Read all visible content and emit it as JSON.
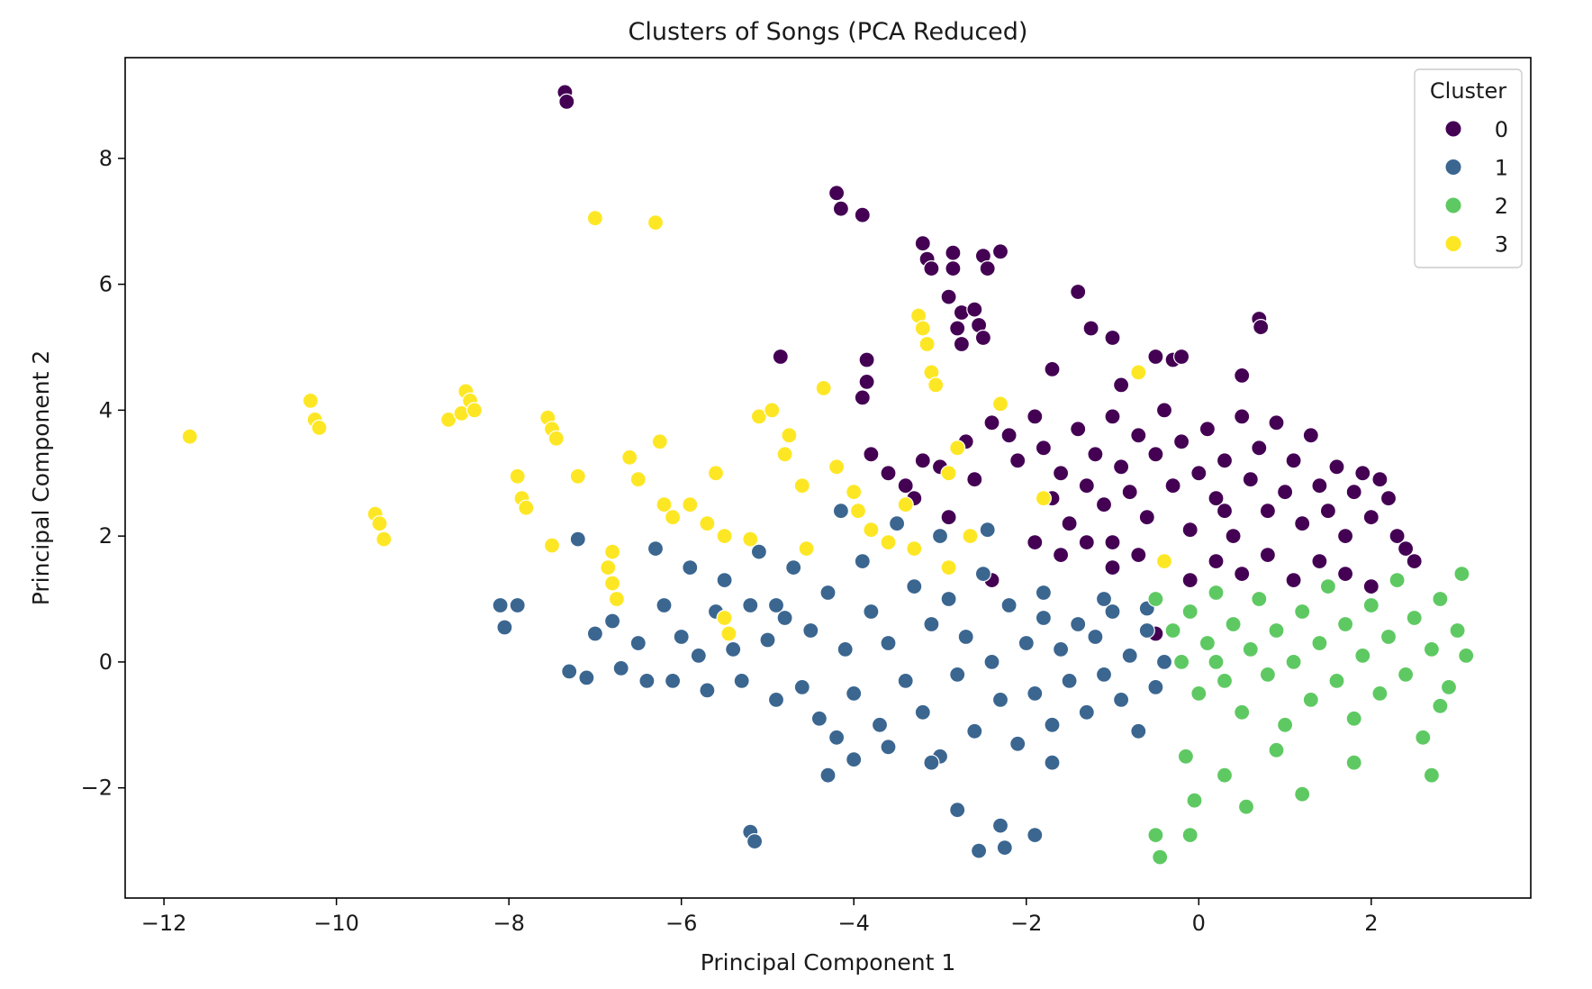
{
  "chart_data": {
    "type": "scatter",
    "title": "Clusters of Songs (PCA Reduced)",
    "xlabel": "Principal Component 1",
    "ylabel": "Principal Component 2",
    "xlim": [
      -12.45,
      3.85
    ],
    "ylim": [
      -3.75,
      9.6
    ],
    "xticks": [
      -12,
      -10,
      -8,
      -6,
      -4,
      -2,
      0,
      2
    ],
    "xtick_labels": [
      "−12",
      "−10",
      "−8",
      "−6",
      "−4",
      "−2",
      "0",
      "2"
    ],
    "yticks": [
      -2,
      0,
      2,
      4,
      6,
      8
    ],
    "ytick_labels": [
      "−2",
      "0",
      "2",
      "4",
      "6",
      "8"
    ],
    "grid": false,
    "legend": {
      "title": "Cluster",
      "placement": "top-right"
    },
    "series": [
      {
        "name": "0",
        "color": "#440154",
        "points": [
          [
            -7.35,
            9.05
          ],
          [
            -7.33,
            8.9
          ],
          [
            -4.2,
            7.45
          ],
          [
            -4.15,
            7.2
          ],
          [
            -3.9,
            7.1
          ],
          [
            -3.2,
            6.65
          ],
          [
            -3.15,
            6.4
          ],
          [
            -3.1,
            6.25
          ],
          [
            -2.85,
            6.5
          ],
          [
            -2.85,
            6.25
          ],
          [
            -2.5,
            6.45
          ],
          [
            -2.45,
            6.25
          ],
          [
            -2.3,
            6.52
          ],
          [
            -2.9,
            5.8
          ],
          [
            -2.75,
            5.55
          ],
          [
            -2.8,
            5.3
          ],
          [
            -2.6,
            5.6
          ],
          [
            -2.55,
            5.35
          ],
          [
            -2.5,
            5.15
          ],
          [
            -2.75,
            5.05
          ],
          [
            -1.4,
            5.88
          ],
          [
            -1.25,
            5.3
          ],
          [
            -1.0,
            5.15
          ],
          [
            0.7,
            5.45
          ],
          [
            0.72,
            5.32
          ],
          [
            -4.85,
            4.85
          ],
          [
            -3.85,
            4.8
          ],
          [
            -3.85,
            4.45
          ],
          [
            -3.9,
            4.2
          ],
          [
            -1.7,
            4.65
          ],
          [
            -0.5,
            4.85
          ],
          [
            -0.3,
            4.8
          ],
          [
            -0.2,
            4.85
          ],
          [
            0.5,
            4.55
          ],
          [
            -0.9,
            4.4
          ],
          [
            -3.8,
            3.3
          ],
          [
            -3.6,
            3.0
          ],
          [
            -3.4,
            2.8
          ],
          [
            -3.2,
            3.2
          ],
          [
            -3.0,
            3.1
          ],
          [
            -2.7,
            3.5
          ],
          [
            -2.6,
            2.9
          ],
          [
            -2.4,
            3.8
          ],
          [
            -2.2,
            3.6
          ],
          [
            -2.1,
            3.2
          ],
          [
            -1.9,
            3.9
          ],
          [
            -1.8,
            3.4
          ],
          [
            -1.7,
            2.6
          ],
          [
            -1.6,
            3.0
          ],
          [
            -1.5,
            2.2
          ],
          [
            -1.4,
            3.7
          ],
          [
            -1.3,
            2.8
          ],
          [
            -1.2,
            3.3
          ],
          [
            -1.1,
            2.5
          ],
          [
            -1.0,
            3.9
          ],
          [
            -0.9,
            3.1
          ],
          [
            -0.8,
            2.7
          ],
          [
            -0.7,
            3.6
          ],
          [
            -0.6,
            2.3
          ],
          [
            -0.5,
            3.3
          ],
          [
            -0.4,
            4.0
          ],
          [
            -0.3,
            2.8
          ],
          [
            -0.2,
            3.5
          ],
          [
            -0.1,
            2.1
          ],
          [
            0.0,
            3.0
          ],
          [
            0.1,
            3.7
          ],
          [
            0.2,
            2.6
          ],
          [
            0.3,
            3.2
          ],
          [
            0.4,
            2.0
          ],
          [
            0.5,
            3.9
          ],
          [
            0.6,
            2.9
          ],
          [
            0.7,
            3.4
          ],
          [
            0.8,
            2.4
          ],
          [
            0.9,
            3.8
          ],
          [
            1.0,
            2.7
          ],
          [
            1.1,
            3.2
          ],
          [
            1.2,
            2.2
          ],
          [
            1.3,
            3.6
          ],
          [
            1.4,
            2.8
          ],
          [
            1.5,
            2.4
          ],
          [
            1.6,
            3.1
          ],
          [
            1.7,
            2.0
          ],
          [
            1.8,
            2.7
          ],
          [
            1.9,
            3.0
          ],
          [
            2.0,
            2.3
          ],
          [
            2.1,
            2.9
          ],
          [
            2.2,
            2.6
          ],
          [
            2.3,
            2.0
          ],
          [
            2.4,
            1.8
          ],
          [
            2.5,
            1.6
          ],
          [
            -1.9,
            1.9
          ],
          [
            -1.6,
            1.7
          ],
          [
            -1.3,
            1.9
          ],
          [
            -1.0,
            1.5
          ],
          [
            -0.7,
            1.7
          ],
          [
            -0.4,
            1.6
          ],
          [
            -0.1,
            1.3
          ],
          [
            0.2,
            1.6
          ],
          [
            0.5,
            1.4
          ],
          [
            0.8,
            1.7
          ],
          [
            1.1,
            1.3
          ],
          [
            1.4,
            1.6
          ],
          [
            1.7,
            1.4
          ],
          [
            2.0,
            1.2
          ],
          [
            -2.4,
            1.3
          ],
          [
            -0.5,
            0.45
          ],
          [
            -2.9,
            2.3
          ],
          [
            -3.3,
            2.6
          ],
          [
            -1.0,
            1.9
          ],
          [
            0.3,
            2.4
          ]
        ]
      },
      {
        "name": "1",
        "color": "#3b6690",
        "points": [
          [
            -8.1,
            0.9
          ],
          [
            -8.05,
            0.55
          ],
          [
            -7.9,
            0.9
          ],
          [
            -7.3,
            -0.15
          ],
          [
            -7.2,
            1.95
          ],
          [
            -7.1,
            -0.25
          ],
          [
            -7.0,
            0.45
          ],
          [
            -6.8,
            0.65
          ],
          [
            -6.7,
            -0.1
          ],
          [
            -6.5,
            0.3
          ],
          [
            -6.3,
            1.8
          ],
          [
            -6.2,
            0.9
          ],
          [
            -6.1,
            -0.3
          ],
          [
            -6.0,
            0.4
          ],
          [
            -5.9,
            1.5
          ],
          [
            -5.8,
            0.1
          ],
          [
            -5.7,
            -0.45
          ],
          [
            -5.6,
            0.8
          ],
          [
            -5.5,
            1.3
          ],
          [
            -5.4,
            0.2
          ],
          [
            -5.3,
            -0.3
          ],
          [
            -5.2,
            0.9
          ],
          [
            -5.1,
            1.75
          ],
          [
            -5.0,
            0.35
          ],
          [
            -4.9,
            -0.6
          ],
          [
            -4.8,
            0.7
          ],
          [
            -4.7,
            1.5
          ],
          [
            -4.6,
            -0.4
          ],
          [
            -4.5,
            0.5
          ],
          [
            -4.4,
            -0.9
          ],
          [
            -4.3,
            1.1
          ],
          [
            -4.2,
            -1.2
          ],
          [
            -4.1,
            0.2
          ],
          [
            -4.0,
            -0.5
          ],
          [
            -3.9,
            1.6
          ],
          [
            -3.8,
            0.8
          ],
          [
            -3.7,
            -1.0
          ],
          [
            -3.6,
            0.3
          ],
          [
            -3.5,
            2.2
          ],
          [
            -3.4,
            -0.3
          ],
          [
            -3.3,
            1.2
          ],
          [
            -3.2,
            -0.8
          ],
          [
            -3.1,
            0.6
          ],
          [
            -3.0,
            -1.5
          ],
          [
            -2.9,
            1.0
          ],
          [
            -2.8,
            -0.2
          ],
          [
            -2.7,
            0.4
          ],
          [
            -2.6,
            -1.1
          ],
          [
            -2.5,
            1.4
          ],
          [
            -2.4,
            0.0
          ],
          [
            -2.3,
            -0.6
          ],
          [
            -2.2,
            0.9
          ],
          [
            -2.1,
            -1.3
          ],
          [
            -2.0,
            0.3
          ],
          [
            -1.9,
            -0.5
          ],
          [
            -1.8,
            0.7
          ],
          [
            -1.7,
            -1.0
          ],
          [
            -1.6,
            0.2
          ],
          [
            -1.5,
            -0.3
          ],
          [
            -1.4,
            0.6
          ],
          [
            -1.3,
            -0.8
          ],
          [
            -1.2,
            0.4
          ],
          [
            -1.1,
            -0.2
          ],
          [
            -1.0,
            0.8
          ],
          [
            -0.9,
            -0.6
          ],
          [
            -0.8,
            0.1
          ],
          [
            -0.7,
            -1.1
          ],
          [
            -0.6,
            0.5
          ],
          [
            -0.5,
            -0.4
          ],
          [
            -0.4,
            0.0
          ],
          [
            -5.2,
            -2.7
          ],
          [
            -5.15,
            -2.85
          ],
          [
            -4.0,
            -1.55
          ],
          [
            -3.6,
            -1.35
          ],
          [
            -2.8,
            -2.35
          ],
          [
            -2.55,
            -3.0
          ],
          [
            -2.3,
            -2.6
          ],
          [
            -2.25,
            -2.95
          ],
          [
            -1.9,
            -2.75
          ],
          [
            -1.7,
            -1.6
          ],
          [
            -3.1,
            -1.6
          ],
          [
            -4.3,
            -1.8
          ],
          [
            -4.15,
            2.4
          ],
          [
            -4.9,
            0.9
          ],
          [
            -6.4,
            -0.3
          ],
          [
            -3.0,
            2.0
          ],
          [
            -2.45,
            2.1
          ],
          [
            -1.8,
            1.1
          ],
          [
            -1.1,
            1.0
          ],
          [
            -0.6,
            0.85
          ]
        ]
      },
      {
        "name": "2",
        "color": "#5ec962",
        "points": [
          [
            -0.5,
            1.0
          ],
          [
            -0.3,
            0.5
          ],
          [
            -0.2,
            0.0
          ],
          [
            -0.1,
            0.8
          ],
          [
            0.0,
            -0.5
          ],
          [
            0.1,
            0.3
          ],
          [
            0.2,
            1.1
          ],
          [
            0.3,
            -0.3
          ],
          [
            0.4,
            0.6
          ],
          [
            0.5,
            -0.8
          ],
          [
            0.6,
            0.2
          ],
          [
            0.7,
            1.0
          ],
          [
            0.8,
            -0.2
          ],
          [
            0.9,
            0.5
          ],
          [
            1.0,
            -1.0
          ],
          [
            1.1,
            0.0
          ],
          [
            1.2,
            0.8
          ],
          [
            1.3,
            -0.6
          ],
          [
            1.4,
            0.3
          ],
          [
            1.5,
            1.2
          ],
          [
            1.6,
            -0.3
          ],
          [
            1.7,
            0.6
          ],
          [
            1.8,
            -0.9
          ],
          [
            1.9,
            0.1
          ],
          [
            2.0,
            0.9
          ],
          [
            2.1,
            -0.5
          ],
          [
            2.2,
            0.4
          ],
          [
            2.3,
            1.3
          ],
          [
            2.4,
            -0.2
          ],
          [
            2.5,
            0.7
          ],
          [
            2.6,
            -1.2
          ],
          [
            2.7,
            0.2
          ],
          [
            2.8,
            1.0
          ],
          [
            2.9,
            -0.4
          ],
          [
            3.0,
            0.5
          ],
          [
            3.05,
            1.4
          ],
          [
            3.1,
            0.1
          ],
          [
            -0.15,
            -1.5
          ],
          [
            0.3,
            -1.8
          ],
          [
            0.9,
            -1.4
          ],
          [
            1.2,
            -2.1
          ],
          [
            1.8,
            -1.6
          ],
          [
            2.7,
            -1.8
          ],
          [
            0.55,
            -2.3
          ],
          [
            -0.05,
            -2.2
          ],
          [
            -0.5,
            -2.75
          ],
          [
            -0.45,
            -3.1
          ],
          [
            -0.1,
            -2.75
          ],
          [
            2.8,
            -0.7
          ],
          [
            0.2,
            0.0
          ]
        ]
      },
      {
        "name": "3",
        "color": "#fde725",
        "points": [
          [
            -11.7,
            3.58
          ],
          [
            -10.3,
            4.15
          ],
          [
            -10.25,
            3.85
          ],
          [
            -10.2,
            3.72
          ],
          [
            -9.55,
            2.35
          ],
          [
            -9.5,
            2.2
          ],
          [
            -9.45,
            1.95
          ],
          [
            -8.7,
            3.85
          ],
          [
            -8.55,
            3.95
          ],
          [
            -8.5,
            4.3
          ],
          [
            -8.45,
            4.15
          ],
          [
            -8.4,
            4.0
          ],
          [
            -7.9,
            2.95
          ],
          [
            -7.85,
            2.6
          ],
          [
            -7.8,
            2.45
          ],
          [
            -7.55,
            3.88
          ],
          [
            -7.5,
            3.7
          ],
          [
            -7.45,
            3.55
          ],
          [
            -7.5,
            1.85
          ],
          [
            -7.2,
            2.95
          ],
          [
            -7.0,
            7.05
          ],
          [
            -6.3,
            6.98
          ],
          [
            -6.8,
            1.75
          ],
          [
            -6.85,
            1.5
          ],
          [
            -6.8,
            1.25
          ],
          [
            -6.75,
            1.0
          ],
          [
            -6.6,
            3.25
          ],
          [
            -6.5,
            2.9
          ],
          [
            -6.25,
            3.5
          ],
          [
            -6.2,
            2.5
          ],
          [
            -6.1,
            2.3
          ],
          [
            -5.9,
            2.5
          ],
          [
            -5.7,
            2.2
          ],
          [
            -5.6,
            3.0
          ],
          [
            -5.5,
            2.0
          ],
          [
            -5.5,
            0.7
          ],
          [
            -5.45,
            0.45
          ],
          [
            -5.2,
            1.95
          ],
          [
            -5.1,
            3.9
          ],
          [
            -4.95,
            4.0
          ],
          [
            -4.8,
            3.3
          ],
          [
            -4.75,
            3.6
          ],
          [
            -4.6,
            2.8
          ],
          [
            -4.55,
            1.8
          ],
          [
            -4.35,
            4.35
          ],
          [
            -4.2,
            3.1
          ],
          [
            -4.0,
            2.7
          ],
          [
            -3.95,
            2.4
          ],
          [
            -3.8,
            2.1
          ],
          [
            -3.6,
            1.9
          ],
          [
            -3.4,
            2.5
          ],
          [
            -3.3,
            1.8
          ],
          [
            -3.25,
            5.5
          ],
          [
            -3.2,
            5.3
          ],
          [
            -3.15,
            5.05
          ],
          [
            -3.1,
            4.6
          ],
          [
            -3.05,
            4.4
          ],
          [
            -2.9,
            3.0
          ],
          [
            -2.8,
            3.4
          ],
          [
            -2.9,
            1.5
          ],
          [
            -2.65,
            2.0
          ],
          [
            -2.3,
            4.1
          ],
          [
            -1.8,
            2.6
          ],
          [
            -0.7,
            4.6
          ],
          [
            -0.4,
            1.6
          ]
        ]
      }
    ]
  }
}
